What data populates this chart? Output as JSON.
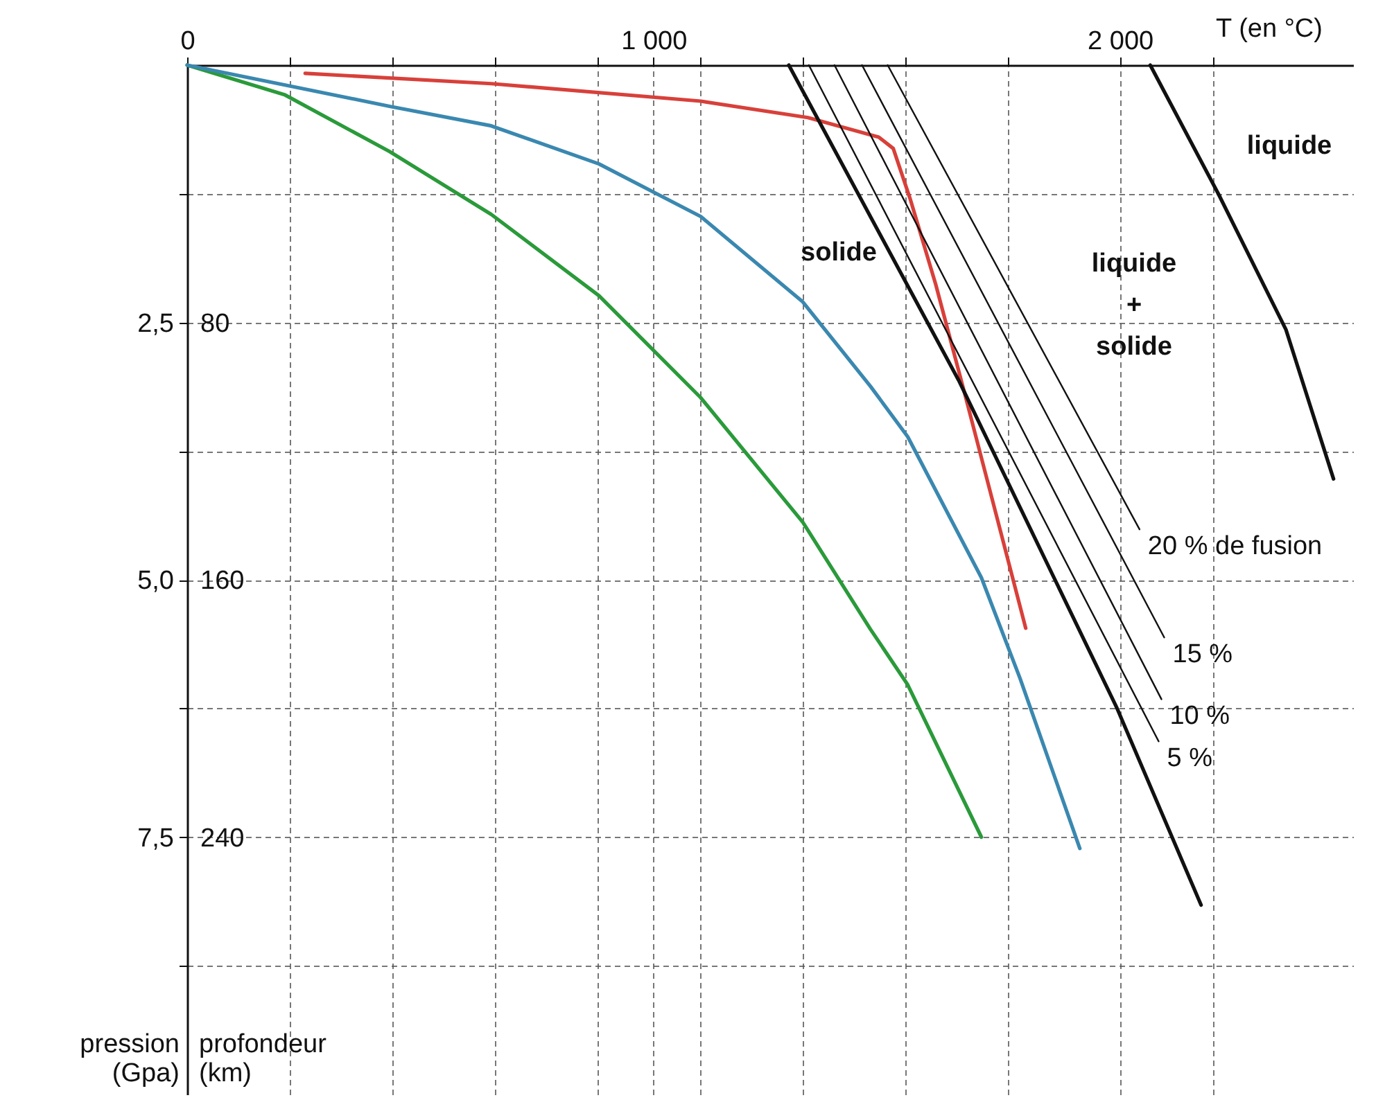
{
  "chart_data": {
    "type": "line",
    "xlabel": "T (en °C)",
    "ylabel": "pression (Gpa)",
    "y2label": "profondeur (km)",
    "xlim": [
      0,
      2500
    ],
    "xticks": [
      0,
      {
        "value": 1000,
        "label": "1 000"
      },
      {
        "value": 2000,
        "label": "2 000"
      },
      {
        "value": 220,
        "label": null
      },
      {
        "value": 440,
        "label": null
      },
      {
        "value": 660,
        "label": null
      },
      {
        "value": 880,
        "label": null
      },
      {
        "value": 1100,
        "label": null
      },
      {
        "value": 1320,
        "label": null
      },
      {
        "value": 1540,
        "label": null
      },
      {
        "value": 1760,
        "label": null
      },
      {
        "value": 2200,
        "label": null
      }
    ],
    "ylim": [
      10,
      0
    ],
    "yticks": [
      {
        "value": 2.5,
        "label": "2,5"
      },
      {
        "value": 5,
        "label": "5,0"
      },
      {
        "value": 7.5,
        "label": "7,5"
      },
      {
        "value": 1.25,
        "label": null
      },
      {
        "value": 3.75,
        "label": null
      },
      {
        "value": 6.25,
        "label": null
      },
      {
        "value": 8.75,
        "label": null
      }
    ],
    "y2lim": [
      320,
      0
    ],
    "y2ticks": [
      80,
      160,
      240
    ],
    "grid": true,
    "line_style": "solid",
    "series": [
      {
        "color": "#2a9a3a",
        "x": [
          0,
          210,
          434,
          652,
          883,
          1101,
          1320,
          1465,
          1545,
          1703
        ],
        "values": [
          0,
          0.29,
          0.84,
          1.45,
          2.24,
          3.23,
          4.44,
          5.48,
          6.02,
          7.5
        ]
      },
      {
        "color": "#3a88b0",
        "x": [
          0,
          434,
          652,
          883,
          1101,
          1320,
          1465,
          1545,
          1703,
          1786,
          1914
        ],
        "values": [
          0,
          0.4,
          0.59,
          0.96,
          1.47,
          2.3,
          3.12,
          3.61,
          4.98,
          5.96,
          7.61
        ]
      },
      {
        "color": "#d8403a",
        "x": [
          253,
          652,
          1101,
          1331,
          1483,
          1514,
          1551,
          1605,
          1666,
          1798
        ],
        "values": [
          0.08,
          0.18,
          0.35,
          0.51,
          0.7,
          0.81,
          1.31,
          2.13,
          3.17,
          5.47
        ]
      },
      {
        "color": "#111111",
        "x": [
          1290,
          1654,
          1993,
          2174
        ],
        "values": [
          0,
          3.06,
          6.24,
          8.16
        ]
      },
      {
        "name": "5 %",
        "color": "#111111",
        "x": [
          1333,
          2083
        ],
        "values": [
          0,
          6.57
        ]
      },
      {
        "name": "10 %",
        "color": "#111111",
        "x": [
          1388,
          2089
        ],
        "values": [
          0,
          6.16
        ]
      },
      {
        "name": "15 %",
        "color": "#111111",
        "x": [
          1447,
          2095
        ],
        "values": [
          0,
          5.56
        ]
      },
      {
        "name": "20 % de fusion",
        "color": "#111111",
        "x": [
          1502,
          2042
        ],
        "values": [
          0,
          4.51
        ]
      },
      {
        "color": "#111111",
        "x": [
          2065,
          2211,
          2356,
          2458
        ],
        "values": [
          0,
          1.25,
          2.57,
          4.02
        ]
      }
    ],
    "annotations": [
      "solide",
      "liquide + solide",
      "liquide"
    ]
  }
}
